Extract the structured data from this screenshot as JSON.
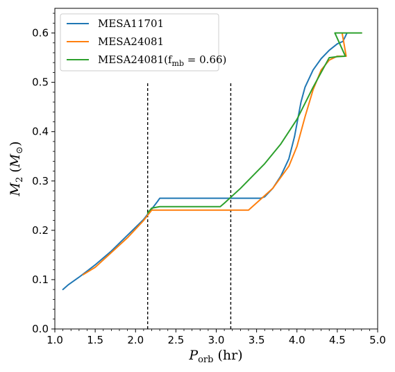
{
  "chart_data": {
    "type": "line",
    "xlabel": "P_orb (hr)",
    "ylabel": "M_2 (M_⊙)",
    "xlim": [
      1.0,
      5.0
    ],
    "ylim": [
      0.0,
      0.65
    ],
    "xticks": [
      1.0,
      1.5,
      2.0,
      2.5,
      3.0,
      3.5,
      4.0,
      4.5,
      5.0
    ],
    "yticks": [
      0.0,
      0.1,
      0.2,
      0.3,
      0.4,
      0.5,
      0.6
    ],
    "xtick_labels": [
      "1.0",
      "1.5",
      "2.0",
      "2.5",
      "3.0",
      "3.5",
      "4.0",
      "4.5",
      "5.0"
    ],
    "ytick_labels": [
      "0.0",
      "0.1",
      "0.2",
      "0.3",
      "0.4",
      "0.5",
      "0.6"
    ],
    "legend_placement": "upper-left",
    "grid": false,
    "vlines": [
      {
        "x": 2.15,
        "y": [
          0.0,
          0.5
        ],
        "style": "dashed",
        "color": "#000000"
      },
      {
        "x": 3.18,
        "y": [
          0.0,
          0.5
        ],
        "style": "dashed",
        "color": "#000000"
      }
    ],
    "series": [
      {
        "name": "MESA11701",
        "label_parts": {
          "main": "MESA11701",
          "sub": "",
          "suffix": ""
        },
        "color": "#1f77b4",
        "x": [
          1.1,
          1.17,
          1.3,
          1.5,
          1.7,
          1.9,
          2.1,
          2.2,
          2.27,
          2.3,
          2.8,
          3.2,
          3.55,
          3.6,
          3.7,
          3.8,
          3.9,
          3.97,
          4.01,
          4.05,
          4.1,
          4.2,
          4.3,
          4.4,
          4.5,
          4.57,
          4.62,
          4.8
        ],
        "y": [
          0.08,
          0.09,
          0.105,
          0.13,
          0.158,
          0.19,
          0.222,
          0.243,
          0.258,
          0.265,
          0.265,
          0.265,
          0.265,
          0.268,
          0.285,
          0.31,
          0.345,
          0.39,
          0.425,
          0.46,
          0.49,
          0.525,
          0.548,
          0.565,
          0.578,
          0.583,
          0.6,
          0.6
        ]
      },
      {
        "name": "MESA24081",
        "label_parts": {
          "main": "MESA24081",
          "sub": "",
          "suffix": ""
        },
        "color": "#ff7f0e",
        "x": [
          1.35,
          1.5,
          1.7,
          1.9,
          2.1,
          2.2,
          2.3,
          3.0,
          3.4,
          3.55,
          3.7,
          3.9,
          4.0,
          4.1,
          4.2,
          4.3,
          4.4,
          4.5,
          4.55,
          4.61,
          4.56,
          4.8
        ],
        "y": [
          0.11,
          0.125,
          0.155,
          0.185,
          0.22,
          0.241,
          0.241,
          0.241,
          0.241,
          0.263,
          0.285,
          0.33,
          0.37,
          0.43,
          0.485,
          0.525,
          0.545,
          0.553,
          0.553,
          0.553,
          0.6,
          0.6
        ]
      },
      {
        "name": "MESA24081(f_mb = 0.66)",
        "label_parts": {
          "main": "MESA24081(f",
          "sub": "mb",
          "suffix": " = 0.66)"
        },
        "color": "#2ca02c",
        "x": [
          2.15,
          2.2,
          2.3,
          3.05,
          3.1,
          3.3,
          3.6,
          3.8,
          4.0,
          4.2,
          4.4,
          4.5,
          4.6,
          4.47,
          4.8
        ],
        "y": [
          0.235,
          0.245,
          0.248,
          0.248,
          0.255,
          0.285,
          0.335,
          0.375,
          0.425,
          0.49,
          0.55,
          0.552,
          0.553,
          0.6,
          0.6
        ]
      }
    ]
  }
}
